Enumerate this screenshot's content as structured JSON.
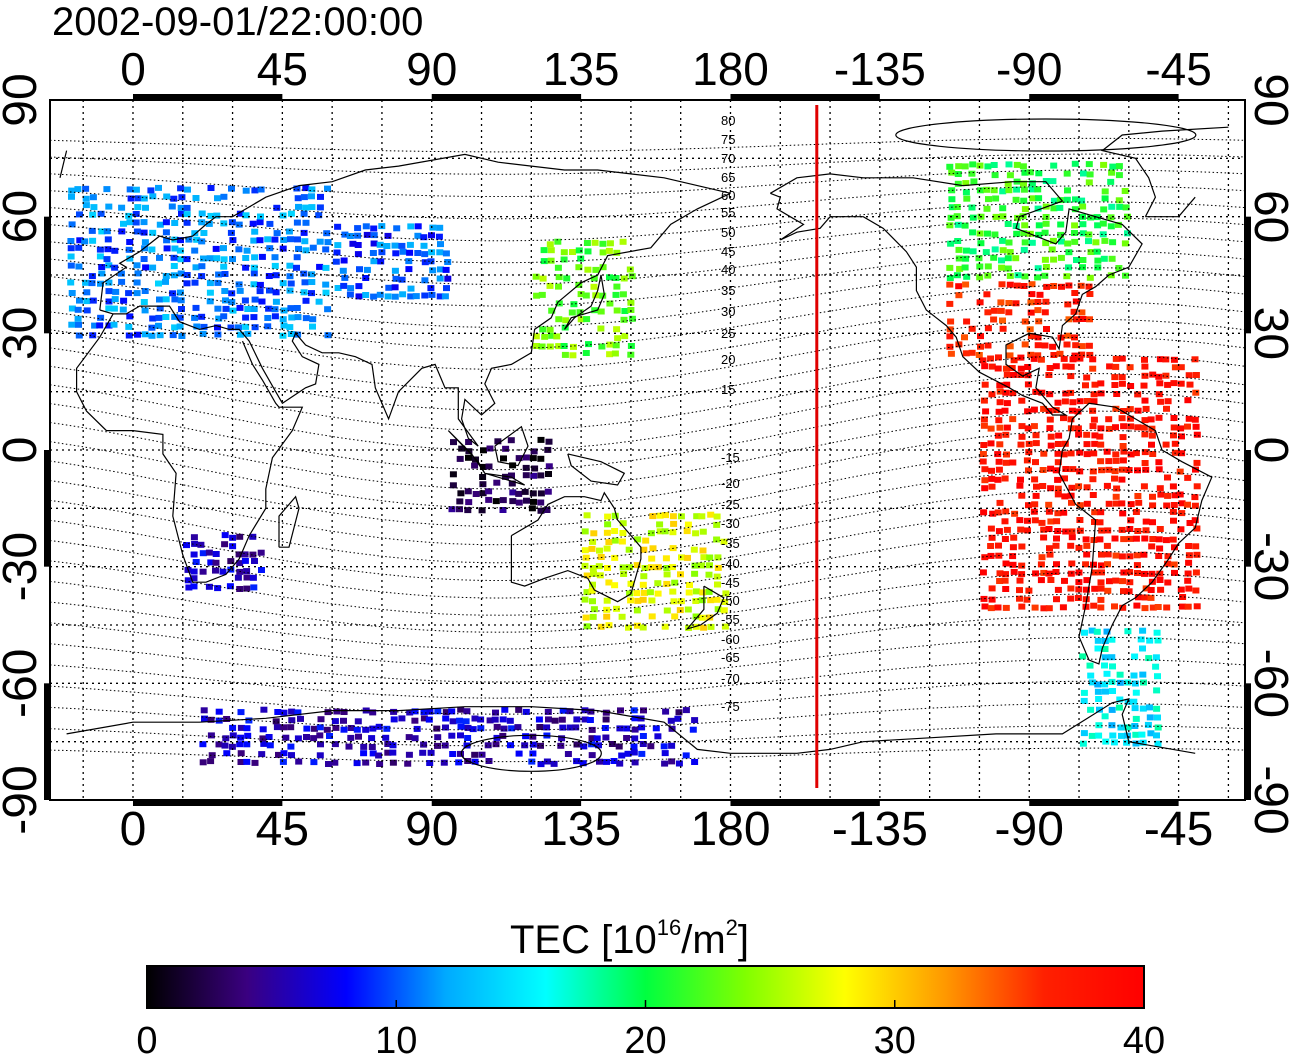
{
  "title": "2002-09-01/22:00:00",
  "map": {
    "lon_ticks_top": [
      "0",
      "45",
      "90",
      "135",
      "180",
      "-135",
      "-90",
      "-45"
    ],
    "lon_ticks_bottom": [
      "0",
      "45",
      "90",
      "135",
      "180",
      "-135",
      "-90",
      "-45"
    ],
    "lat_ticks_left": [
      "90",
      "60",
      "30",
      "0",
      "-30",
      "-60",
      "-90"
    ],
    "lat_ticks_right": [
      "90",
      "60",
      "30",
      "0",
      "-30",
      "-60",
      "-90"
    ],
    "contour_labels_north": [
      "80",
      "75",
      "70",
      "65",
      "60",
      "55",
      "50",
      "45",
      "40",
      "35",
      "30",
      "25",
      "20",
      "15"
    ],
    "contour_labels_south": [
      "-15",
      "-20",
      "-25",
      "-30",
      "-35",
      "-40",
      "-45",
      "-50",
      "-55",
      "-60",
      "-65",
      "-70",
      "-75"
    ],
    "terminator_line_color": "#e00000",
    "terminator_lon": -154
  },
  "colorbar": {
    "label_prefix": "TEC  [10",
    "label_exp": "16",
    "label_mid": "/m",
    "label_exp2": "2",
    "label_suffix": "]",
    "tick_labels": [
      "0",
      "10",
      "20",
      "30",
      "40"
    ],
    "min": 0,
    "max": 40,
    "colors": [
      "#000000",
      "#3a0080",
      "#0000ff",
      "#00aaff",
      "#00ffff",
      "#00ff40",
      "#80ff00",
      "#ffff00",
      "#ff9900",
      "#ff2000",
      "#ff0000"
    ]
  },
  "chart_data": {
    "type": "heatmap",
    "title": "2002-09-01/22:00:00",
    "colorbar_label": "TEC [10^16/m^2]",
    "colorbar_range": [
      0,
      40
    ],
    "xlim": [
      -25,
      335
    ],
    "ylim": [
      -90,
      90
    ],
    "regions": [
      {
        "lon": [
          -20,
          60
        ],
        "lat": [
          30,
          70
        ],
        "tec": 11
      },
      {
        "lon": [
          60,
          95
        ],
        "lat": [
          40,
          60
        ],
        "tec": 10
      },
      {
        "lon": [
          120,
          150
        ],
        "lat": [
          25,
          55
        ],
        "tec": 23
      },
      {
        "lon": [
          95,
          125
        ],
        "lat": [
          -15,
          5
        ],
        "tec": 2
      },
      {
        "lon": [
          15,
          40
        ],
        "lat": [
          -35,
          -20
        ],
        "tec": 6
      },
      {
        "lon": [
          135,
          180
        ],
        "lat": [
          -45,
          -15
        ],
        "tec": 27
      },
      {
        "lon": [
          245,
          290
        ],
        "lat": [
          25,
          45
        ],
        "tec": 37
      },
      {
        "lon": [
          245,
          300
        ],
        "lat": [
          45,
          75
        ],
        "tec": 21
      },
      {
        "lon": [
          255,
          320
        ],
        "lat": [
          -40,
          25
        ],
        "tec": 38
      },
      {
        "lon": [
          285,
          310
        ],
        "lat": [
          -75,
          -45
        ],
        "tec": 15
      },
      {
        "lon": [
          20,
          170
        ],
        "lat": [
          -80,
          -65
        ],
        "tec": 6
      }
    ]
  }
}
